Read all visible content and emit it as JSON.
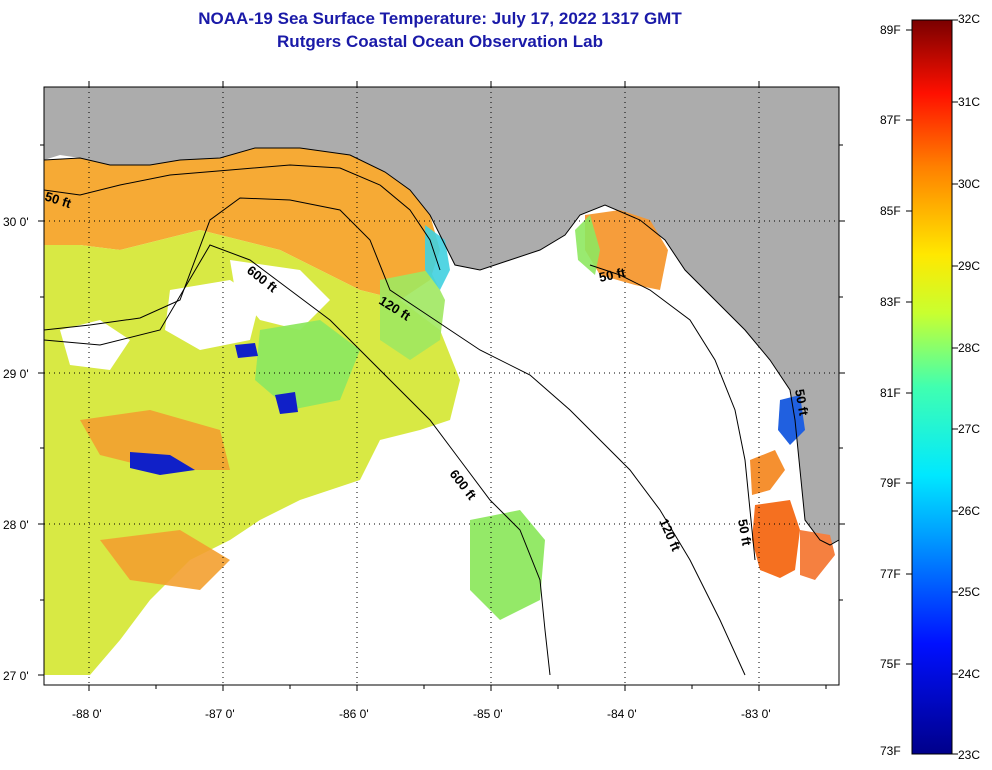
{
  "title": {
    "line1": "NOAA-19 Sea Surface Temperature:  July 17, 2022 1317 GMT",
    "line2": "Rutgers Coastal Ocean Observation Lab"
  },
  "axes": {
    "lat_ticks": [
      "30 0'",
      "29 0'",
      "28 0'",
      "27 0'"
    ],
    "lon_ticks": [
      "-88 0'",
      "-87 0'",
      "-86 0'",
      "-85 0'",
      "-84 0'",
      "-83 0'"
    ]
  },
  "contours": {
    "c50a": "50 ft",
    "c600a": "600 ft",
    "c120a": "120 ft",
    "c50b": "50 ft",
    "c600b": "600 ft",
    "c120b": "120 ft",
    "c50c": "50 ft",
    "c50d": "50 ft"
  },
  "colorbar": {
    "fahrenheit": [
      "89F",
      "87F",
      "85F",
      "83F",
      "81F",
      "79F",
      "77F",
      "75F",
      "73F"
    ],
    "celsius": [
      "32C",
      "31C",
      "30C",
      "29C",
      "28C",
      "27C",
      "26C",
      "25C",
      "24C",
      "23C"
    ]
  },
  "colors": {
    "land": "#acacac",
    "title": "#1a1aa8"
  }
}
